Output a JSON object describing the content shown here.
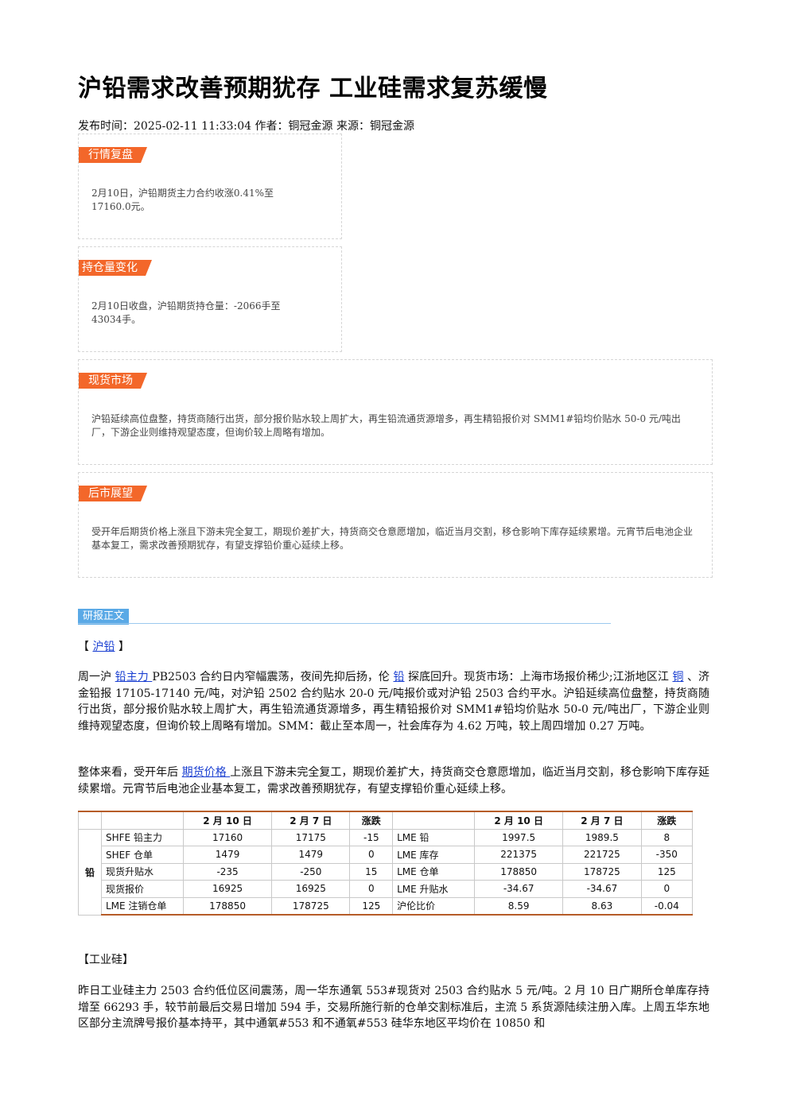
{
  "title": "沪铅需求改善预期犹存 工业硅需求复苏缓慢",
  "meta": "发布时间：2025-02-11 11:33:04 作者：铜冠金源 来源：铜冠金源",
  "sections": {
    "market": {
      "tag": "行情复盘",
      "text": "2月10日，沪铅期货主力合约收涨0.41%至17160.0元。"
    },
    "position": {
      "tag": "持仓量变化",
      "text": "2月10日收盘，沪铅期货持仓量：-2066手至43034手。"
    },
    "spot": {
      "tag": "现货市场",
      "text": "沪铅延续高位盘整，持货商随行出货，部分报价贴水较上周扩大，再生铅流通货源增多，再生精铅报价对 SMM1#铅均价贴水 50-0 元/吨出厂，下游企业则维持观望态度，但询价较上周略有增加。"
    },
    "outlook": {
      "tag": "后市展望",
      "text": "受开年后期货价格上涨且下游未完全复工，期现价差扩大，持货商交仓意愿增加，临近当月交割，移仓影响下库存延续累增。元宵节后电池企业基本复工，需求改善预期犹存，有望支撑铅价重心延续上移。"
    }
  },
  "report": {
    "tag": "研报正文",
    "lead_heading": {
      "open": "【 ",
      "link": "沪铅",
      "close": " 】"
    },
    "p1": {
      "t1": "周一沪 ",
      "link1": "铅主力 ",
      "t2": "PB2503 合约日内窄幅震荡，夜间先抑后扬，伦 ",
      "link2": "铅",
      "t3": " 探底回升。现货市场：上海市场报价稀少;江浙地区江 ",
      "link3": "铜",
      "t4": " 、济金铅报 17105-17140 元/吨，对沪铅 2502 合约贴水 20-0 元/吨报价或对沪铅 2503 合约平水。沪铅延续高位盘整，持货商随行出货，部分报价贴水较上周扩大，再生铅流通货源增多，再生精铅报价对 SMM1#铅均价贴水 50-0 元/吨出厂，下游企业则维持观望态度，但询价较上周略有增加。SMM：截止至本周一，社会库存为 4.62 万吨，较上周四增加 0.27 万吨。"
    },
    "p2": {
      "t1": "整体来看，受开年后 ",
      "link1": "期货价格 ",
      "t2": "上涨且下游未完全复工，期现价差扩大，持货商交仓意愿增加，临近当月交割，移仓影响下库存延续累增。元宵节后电池企业基本复工，需求改善预期犹存，有望支撑铅价重心延续上移。"
    },
    "silicon_heading": "【工业硅】",
    "p3": "昨日工业硅主力 2503 合约低位区间震荡，周一华东通氧 553#现货对 2503 合约贴水 5 元/吨。2 月 10 日广期所仓单库存持增至 66293 手，较节前最后交易日增加 594 手，交易所施行新的仓单交割标准后，主流 5 系货源陆续注册入库。上周五华东地区部分主流牌号报价基本持平，其中通氧#553 和不通氧#553 硅华东地区平均价在 10850 和"
  },
  "table": {
    "category": "铅",
    "headers": [
      "",
      "",
      "2 月 10 日",
      "2 月 7 日",
      "涨跌",
      "",
      "2 月 10 日",
      "2 月 7 日",
      "涨跌"
    ],
    "rows": [
      [
        "SHFE 铅主力",
        "17160",
        "17175",
        "-15",
        "LME 铅",
        "1997.5",
        "1989.5",
        "8"
      ],
      [
        "SHEF 仓单",
        "1479",
        "1479",
        "0",
        "LME 库存",
        "221375",
        "221725",
        "-350"
      ],
      [
        "现货升贴水",
        "-235",
        "-250",
        "15",
        "LME 仓单",
        "178850",
        "178725",
        "125"
      ],
      [
        "现货报价",
        "16925",
        "16925",
        "0",
        "LME 升贴水",
        "-34.67",
        "-34.67",
        "0"
      ],
      [
        "LME 注销仓单",
        "178850",
        "178725",
        "125",
        "沪伦比价",
        "8.59",
        "8.63",
        "-0.04"
      ]
    ]
  }
}
